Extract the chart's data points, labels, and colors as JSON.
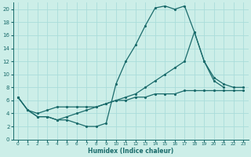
{
  "xlabel": "Humidex (Indice chaleur)",
  "bg_color": "#cceee8",
  "grid_color": "#aaddda",
  "line_color": "#1a6b6b",
  "xlim": [
    -0.5,
    23.5
  ],
  "ylim": [
    0,
    21
  ],
  "xticks": [
    0,
    1,
    2,
    3,
    4,
    5,
    6,
    7,
    8,
    9,
    10,
    11,
    12,
    13,
    14,
    15,
    16,
    17,
    18,
    19,
    20,
    21,
    22,
    23
  ],
  "yticks": [
    0,
    2,
    4,
    6,
    8,
    10,
    12,
    14,
    16,
    18,
    20
  ],
  "curve1_x": [
    0,
    1,
    2,
    3,
    4,
    5,
    6,
    7,
    8,
    9,
    10,
    11,
    12,
    13,
    14,
    15,
    16,
    17,
    18,
    19,
    20,
    21
  ],
  "curve1_y": [
    6.5,
    4.5,
    3.5,
    3.5,
    3.0,
    3.0,
    2.5,
    2.0,
    2.0,
    2.5,
    8.5,
    12.0,
    14.5,
    17.5,
    20.2,
    20.5,
    20.0,
    20.5,
    16.5,
    12.0,
    9.0,
    8.0
  ],
  "curve2_x": [
    0,
    1,
    2,
    3,
    4,
    5,
    6,
    7,
    8,
    9,
    10,
    11,
    12,
    13,
    14,
    15,
    16,
    17,
    18,
    19,
    20,
    21,
    22,
    23
  ],
  "curve2_y": [
    6.5,
    4.5,
    3.5,
    3.5,
    3.0,
    3.5,
    4.0,
    4.5,
    5.0,
    5.5,
    6.0,
    6.5,
    7.0,
    8.0,
    9.0,
    10.0,
    11.0,
    12.0,
    16.5,
    12.0,
    9.5,
    8.5,
    8.0,
    8.0
  ],
  "curve3_x": [
    0,
    1,
    2,
    3,
    4,
    5,
    6,
    7,
    8,
    9,
    10,
    11,
    12,
    13,
    14,
    15,
    16,
    17,
    18,
    19,
    20,
    21,
    22,
    23
  ],
  "curve3_y": [
    6.5,
    4.5,
    4.0,
    4.5,
    5.0,
    5.0,
    5.0,
    5.0,
    5.0,
    5.5,
    6.0,
    6.0,
    6.5,
    6.5,
    7.0,
    7.0,
    7.0,
    7.5,
    7.5,
    7.5,
    7.5,
    7.5,
    7.5,
    7.5
  ]
}
